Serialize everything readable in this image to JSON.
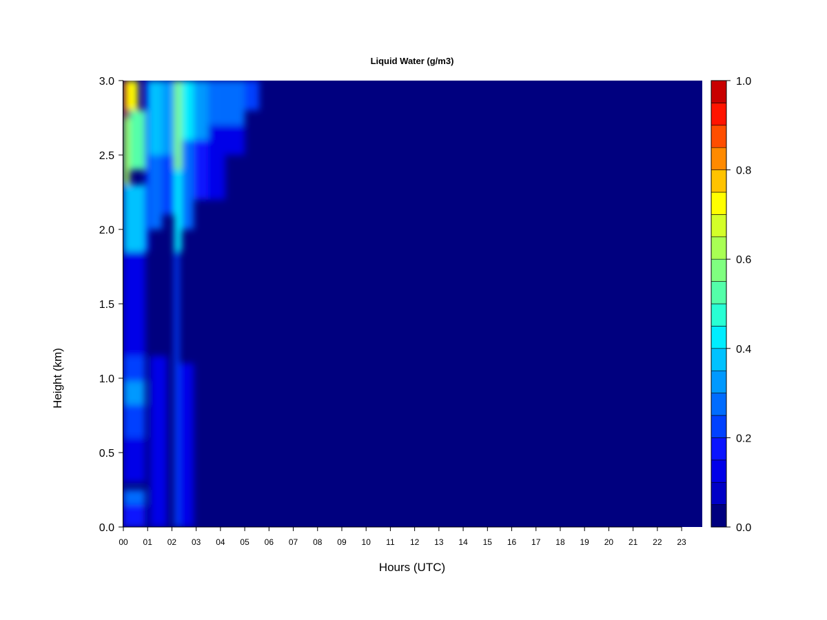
{
  "chart_data": {
    "type": "heatmap",
    "title": "Liquid Water (g/m3)",
    "xlabel": "Hours (UTC)",
    "ylabel": "Height (km)",
    "x_ticks": [
      "00",
      "01",
      "02",
      "03",
      "04",
      "05",
      "06",
      "07",
      "08",
      "09",
      "10",
      "11",
      "12",
      "13",
      "14",
      "15",
      "16",
      "17",
      "18",
      "19",
      "20",
      "21",
      "22",
      "23"
    ],
    "xlim": [
      0,
      23.85
    ],
    "y_ticks": [
      "0.0",
      "0.5",
      "1.0",
      "1.5",
      "2.0",
      "2.5",
      "3.0"
    ],
    "ylim": [
      0,
      3.0
    ],
    "colorbar": {
      "range": [
        0,
        1.0
      ],
      "ticks": [
        "0.0",
        "0.2",
        "0.4",
        "0.6",
        "0.8",
        "1.0"
      ],
      "levels": 20,
      "colors": [
        "#00007F",
        "#0000A2",
        "#0000C6",
        "#0000E8",
        "#0A14FF",
        "#0041FF",
        "#006CFF",
        "#0099FF",
        "#00C2FF",
        "#00EDFF",
        "#29FFD4",
        "#54FFA9",
        "#80FF80",
        "#A9FF54",
        "#D4FF29",
        "#FFFF00",
        "#FFC300",
        "#FF8A00",
        "#FF4E00",
        "#FF1400",
        "#C80000",
        "#7F0000"
      ]
    },
    "cells": [
      {
        "x": [
          0.0,
          0.15
        ],
        "y": [
          2.75,
          3.0
        ],
        "v": 0.85
      },
      {
        "x": [
          0.15,
          0.6
        ],
        "y": [
          2.8,
          3.0
        ],
        "v": 0.72
      },
      {
        "x": [
          0.0,
          0.25
        ],
        "y": [
          2.3,
          2.75
        ],
        "v": 0.62
      },
      {
        "x": [
          0.25,
          0.9
        ],
        "y": [
          2.4,
          2.8
        ],
        "v": 0.5
      },
      {
        "x": [
          0.0,
          0.9
        ],
        "y": [
          1.85,
          2.3
        ],
        "v": 0.35
      },
      {
        "x": [
          0.9,
          1.05
        ],
        "y": [
          1.85,
          3.0
        ],
        "v": 0.15
      },
      {
        "x": [
          1.05,
          1.6
        ],
        "y": [
          2.5,
          3.0
        ],
        "v": 0.38
      },
      {
        "x": [
          1.05,
          1.6
        ],
        "y": [
          2.0,
          2.5
        ],
        "v": 0.25
      },
      {
        "x": [
          1.6,
          2.1
        ],
        "y": [
          2.5,
          3.0
        ],
        "v": 0.3
      },
      {
        "x": [
          1.6,
          2.1
        ],
        "y": [
          2.1,
          2.5
        ],
        "v": 0.2
      },
      {
        "x": [
          2.1,
          2.4
        ],
        "y": [
          2.4,
          3.0
        ],
        "v": 0.55
      },
      {
        "x": [
          2.1,
          2.4
        ],
        "y": [
          1.85,
          2.4
        ],
        "v": 0.42
      },
      {
        "x": [
          2.4,
          2.9
        ],
        "y": [
          2.6,
          3.0
        ],
        "v": 0.4
      },
      {
        "x": [
          2.4,
          2.9
        ],
        "y": [
          2.0,
          2.6
        ],
        "v": 0.25
      },
      {
        "x": [
          2.9,
          3.5
        ],
        "y": [
          2.6,
          3.0
        ],
        "v": 0.32
      },
      {
        "x": [
          2.9,
          3.5
        ],
        "y": [
          2.2,
          2.6
        ],
        "v": 0.18
      },
      {
        "x": [
          3.5,
          4.2
        ],
        "y": [
          2.7,
          3.0
        ],
        "v": 0.28
      },
      {
        "x": [
          3.5,
          4.2
        ],
        "y": [
          2.2,
          2.7
        ],
        "v": 0.14
      },
      {
        "x": [
          4.2,
          5.0
        ],
        "y": [
          2.7,
          3.0
        ],
        "v": 0.25
      },
      {
        "x": [
          4.2,
          5.0
        ],
        "y": [
          2.5,
          2.7
        ],
        "v": 0.12
      },
      {
        "x": [
          5.0,
          5.6
        ],
        "y": [
          2.8,
          3.0
        ],
        "v": 0.2
      },
      {
        "x": [
          0.0,
          0.9
        ],
        "y": [
          1.15,
          1.85
        ],
        "v": 0.12
      },
      {
        "x": [
          0.0,
          0.9
        ],
        "y": [
          0.98,
          1.15
        ],
        "v": 0.22
      },
      {
        "x": [
          0.0,
          0.9
        ],
        "y": [
          0.82,
          0.98
        ],
        "v": 0.3
      },
      {
        "x": [
          0.0,
          0.9
        ],
        "y": [
          0.6,
          0.82
        ],
        "v": 0.2
      },
      {
        "x": [
          0.0,
          0.9
        ],
        "y": [
          0.3,
          0.6
        ],
        "v": 0.13
      },
      {
        "x": [
          0.0,
          0.9
        ],
        "y": [
          0.15,
          0.25
        ],
        "v": 0.28
      },
      {
        "x": [
          0.0,
          0.9
        ],
        "y": [
          0.0,
          0.15
        ],
        "v": 0.18
      },
      {
        "x": [
          1.1,
          1.8
        ],
        "y": [
          0.0,
          1.15
        ],
        "v": 0.12
      },
      {
        "x": [
          2.1,
          2.3
        ],
        "y": [
          0.0,
          1.85
        ],
        "v": 0.24
      },
      {
        "x": [
          2.3,
          2.9
        ],
        "y": [
          0.0,
          1.1
        ],
        "v": 0.11
      }
    ]
  }
}
